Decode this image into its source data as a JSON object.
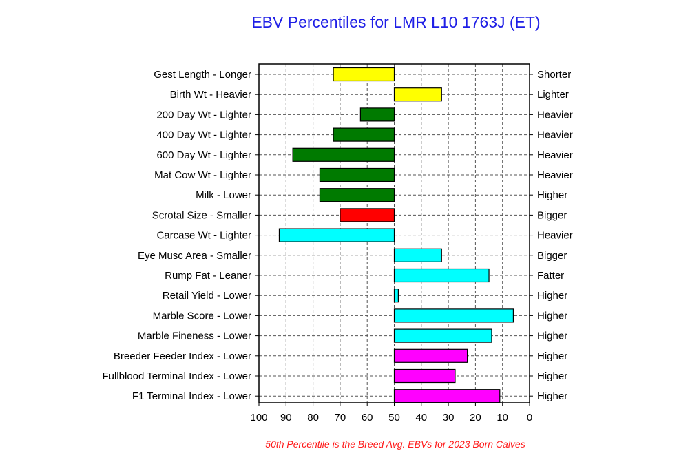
{
  "chart_data": {
    "type": "bar",
    "orientation": "horizontal",
    "title": "EBV Percentiles for LMR L10 1763J (ET)",
    "footnote": "50th Percentile is the Breed Avg. EBVs for 2023 Born Calves",
    "xlim": [
      100,
      0
    ],
    "baseline": 50,
    "x_ticks": [
      "100",
      "90",
      "80",
      "70",
      "60",
      "50",
      "40",
      "30",
      "20",
      "10",
      "0"
    ],
    "grid": true,
    "categories": [
      {
        "left_label": "Gest Length - Longer",
        "right_label": "Shorter",
        "value": 72.5,
        "color": "#ffff00"
      },
      {
        "left_label": "Birth Wt - Heavier",
        "right_label": "Lighter",
        "value": 32.5,
        "color": "#ffff00"
      },
      {
        "left_label": "200 Day Wt - Lighter",
        "right_label": "Heavier",
        "value": 62.5,
        "color": "#007a00"
      },
      {
        "left_label": "400 Day Wt - Lighter",
        "right_label": "Heavier",
        "value": 72.5,
        "color": "#007a00"
      },
      {
        "left_label": "600 Day Wt - Lighter",
        "right_label": "Heavier",
        "value": 87.5,
        "color": "#007a00"
      },
      {
        "left_label": "Mat Cow Wt - Lighter",
        "right_label": "Heavier",
        "value": 77.5,
        "color": "#007a00"
      },
      {
        "left_label": "Milk - Lower",
        "right_label": "Higher",
        "value": 77.5,
        "color": "#007a00"
      },
      {
        "left_label": "Scrotal Size - Smaller",
        "right_label": "Bigger",
        "value": 70,
        "color": "#ff0000"
      },
      {
        "left_label": "Carcase Wt - Lighter",
        "right_label": "Heavier",
        "value": 92.5,
        "color": "#00ffff"
      },
      {
        "left_label": "Eye Musc Area - Smaller",
        "right_label": "Bigger",
        "value": 32.5,
        "color": "#00ffff"
      },
      {
        "left_label": "Rump Fat - Leaner",
        "right_label": "Fatter",
        "value": 15,
        "color": "#00ffff"
      },
      {
        "left_label": "Retail Yield - Lower",
        "right_label": "Higher",
        "value": 48.5,
        "color": "#00ffff"
      },
      {
        "left_label": "Marble Score - Lower",
        "right_label": "Higher",
        "value": 6,
        "color": "#00ffff"
      },
      {
        "left_label": "Marble Fineness - Lower",
        "right_label": "Higher",
        "value": 14,
        "color": "#00ffff"
      },
      {
        "left_label": "Breeder Feeder Index - Lower",
        "right_label": "Higher",
        "value": 23,
        "color": "#ff00ff"
      },
      {
        "left_label": "Fullblood Terminal Index - Lower",
        "right_label": "Higher",
        "value": 27.5,
        "color": "#ff00ff"
      },
      {
        "left_label": "F1 Terminal Index - Lower",
        "right_label": "Higher",
        "value": 11,
        "color": "#ff00ff"
      }
    ]
  }
}
